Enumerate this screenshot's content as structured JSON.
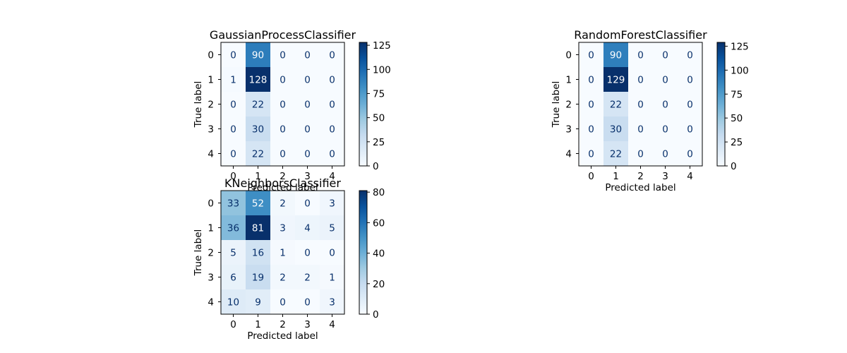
{
  "chart_data": [
    {
      "type": "heatmap",
      "title": "GaussianProcessClassifier",
      "xlabel": "Predicted label",
      "ylabel": "True label",
      "x_ticks": [
        "0",
        "1",
        "2",
        "3",
        "4"
      ],
      "y_ticks": [
        "0",
        "1",
        "2",
        "3",
        "4"
      ],
      "matrix": [
        [
          0,
          90,
          0,
          0,
          0
        ],
        [
          1,
          128,
          0,
          0,
          0
        ],
        [
          0,
          22,
          0,
          0,
          0
        ],
        [
          0,
          30,
          0,
          0,
          0
        ],
        [
          0,
          22,
          0,
          0,
          0
        ]
      ],
      "colormap": "Blues",
      "colorbar_range": [
        0,
        128
      ],
      "colorbar_ticks": [
        "0",
        "25",
        "50",
        "75",
        "100",
        "125"
      ]
    },
    {
      "type": "heatmap",
      "title": "RandomForestClassifier",
      "xlabel": "Predicted label",
      "ylabel": "True label",
      "x_ticks": [
        "0",
        "1",
        "2",
        "3",
        "4"
      ],
      "y_ticks": [
        "0",
        "1",
        "2",
        "3",
        "4"
      ],
      "matrix": [
        [
          0,
          90,
          0,
          0,
          0
        ],
        [
          0,
          129,
          0,
          0,
          0
        ],
        [
          0,
          22,
          0,
          0,
          0
        ],
        [
          0,
          30,
          0,
          0,
          0
        ],
        [
          0,
          22,
          0,
          0,
          0
        ]
      ],
      "colormap": "Blues",
      "colorbar_range": [
        0,
        129
      ],
      "colorbar_ticks": [
        "0",
        "25",
        "50",
        "75",
        "100",
        "125"
      ]
    },
    {
      "type": "heatmap",
      "title": "KNeighborsClassifier",
      "xlabel": "Predicted label",
      "ylabel": "True label",
      "x_ticks": [
        "0",
        "1",
        "2",
        "3",
        "4"
      ],
      "y_ticks": [
        "0",
        "1",
        "2",
        "3",
        "4"
      ],
      "matrix": [
        [
          33,
          52,
          2,
          0,
          3
        ],
        [
          36,
          81,
          3,
          4,
          5
        ],
        [
          5,
          16,
          1,
          0,
          0
        ],
        [
          6,
          19,
          2,
          2,
          1
        ],
        [
          10,
          9,
          0,
          0,
          3
        ]
      ],
      "colormap": "Blues",
      "colorbar_range": [
        0,
        81
      ],
      "colorbar_ticks": [
        "0",
        "20",
        "40",
        "60",
        "80"
      ]
    }
  ]
}
